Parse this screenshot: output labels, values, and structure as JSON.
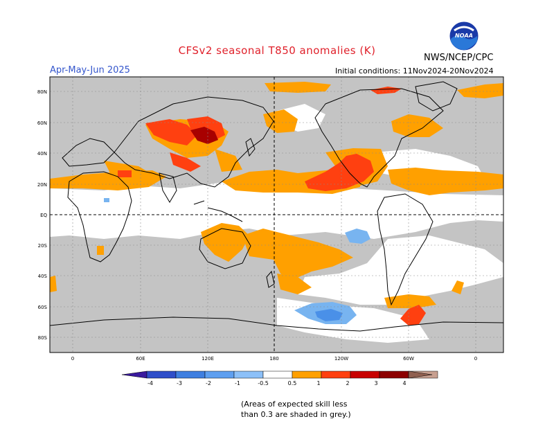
{
  "title": "CFSv2 seasonal T850 anomalies (K)",
  "agency": "NWS/NCEP/CPC",
  "logo_text": "NOAA",
  "season": "Apr-May-Jun 2025",
  "initial_conditions": "Initial conditions: 11Nov2024-20Nov2024",
  "lat_labels": [
    "80N",
    "60N",
    "40N",
    "20N",
    "EQ",
    "20S",
    "40S",
    "60S",
    "80S"
  ],
  "lon_labels": [
    "0",
    "60E",
    "120E",
    "180",
    "120W",
    "60W",
    "0"
  ],
  "colorbar": {
    "labels": [
      "-4",
      "-3",
      "-2",
      "-1",
      "-0.5",
      "0.5",
      "1",
      "2",
      "3",
      "4"
    ],
    "colors": [
      "#3a1a9e",
      "#2f4ec9",
      "#3f7fe0",
      "#5e9ff0",
      "#8cc0f8",
      "#ffffff",
      "#ffa000",
      "#ff4010",
      "#c80000",
      "#8c0000",
      "#c8a090",
      "#906050"
    ]
  },
  "skill_note_line1": "(Areas of expected skill less",
  "skill_note_line2": "than 0.3 are shaded in grey.)",
  "colors": {
    "land_grey": "#c4c4c4",
    "ocean_white": "#ffffff",
    "anom_orange": "#ffa000",
    "anom_red": "#ff4010",
    "anom_dark_red": "#a80000",
    "anom_light_blue": "#78b4f0",
    "anom_blue": "#4a90e8",
    "title_red": "#e0202a",
    "season_blue": "#3355cc"
  }
}
